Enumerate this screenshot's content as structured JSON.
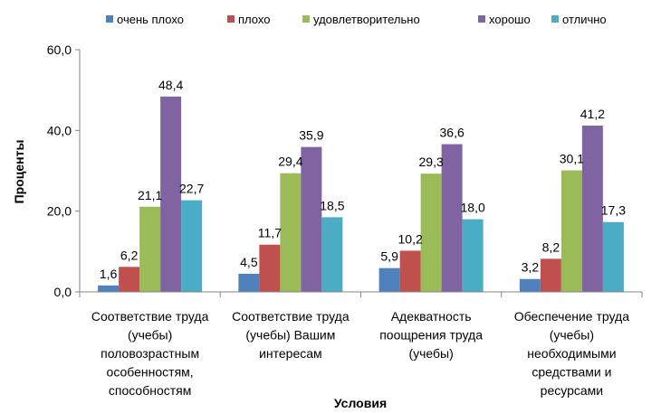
{
  "chart_data": {
    "type": "bar",
    "xlabel": "Условия",
    "ylabel": "Проценты",
    "ylim": [
      0,
      60
    ],
    "yticks": [
      "0,0",
      "20,0",
      "40,0",
      "60,0"
    ],
    "grid": false,
    "legend_position": "top",
    "categories": [
      [
        "Соответствие труда",
        "(учебы)",
        "половозрастным",
        "особенностям,",
        "способностям"
      ],
      [
        "Соответствие труда",
        "(учебы) Вашим",
        "интересам"
      ],
      [
        "Адекватность",
        "поощрения труда",
        "(учебы)"
      ],
      [
        "Обеспечение труда",
        "(учебы)",
        "необходимыми",
        "средствами и",
        "ресурсами"
      ]
    ],
    "series": [
      {
        "name": "очень плохо",
        "color": "#4f81bd",
        "values": [
          1.6,
          4.5,
          5.9,
          3.2
        ],
        "labels": [
          "1,6",
          "4,5",
          "5,9",
          "3,2"
        ]
      },
      {
        "name": "плохо",
        "color": "#c0504d",
        "values": [
          6.2,
          11.7,
          10.2,
          8.2
        ],
        "labels": [
          "6,2",
          "11,7",
          "10,2",
          "8,2"
        ]
      },
      {
        "name": "удовлетворительно",
        "color": "#9bbb59",
        "values": [
          21.1,
          29.4,
          29.3,
          30.1
        ],
        "labels": [
          "21,1",
          "29,4",
          "29,3",
          "30,1"
        ]
      },
      {
        "name": "хорошо",
        "color": "#8064a2",
        "values": [
          48.4,
          35.9,
          36.6,
          41.2
        ],
        "labels": [
          "48,4",
          "35,9",
          "36,6",
          "41,2"
        ]
      },
      {
        "name": "отлично",
        "color": "#4bacc6",
        "values": [
          22.7,
          18.5,
          18.0,
          17.3
        ],
        "labels": [
          "22,7",
          "18,5",
          "18,0",
          "17,3"
        ]
      }
    ]
  }
}
